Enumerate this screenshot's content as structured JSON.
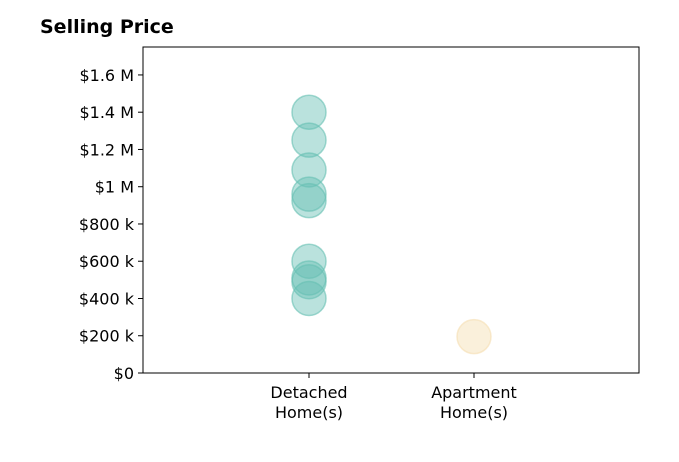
{
  "chart_data": {
    "type": "scatter",
    "title": "Selling Price",
    "xlabel": "",
    "ylabel": "",
    "categories": [
      "Detached\nHome(s)",
      "Apartment\nHome(s)"
    ],
    "ylim": [
      0,
      1750000
    ],
    "yticks": [
      {
        "value": 0,
        "label": "$0"
      },
      {
        "value": 200000,
        "label": "$200 k"
      },
      {
        "value": 400000,
        "label": "$400 k"
      },
      {
        "value": 600000,
        "label": "$600 k"
      },
      {
        "value": 800000,
        "label": "$800 k"
      },
      {
        "value": 1000000,
        "label": "$1 M"
      },
      {
        "value": 1200000,
        "label": "$1.2 M"
      },
      {
        "value": 1400000,
        "label": "$1.4 M"
      },
      {
        "value": 1600000,
        "label": "$1.6 M"
      }
    ],
    "grid": false,
    "series": [
      {
        "category": "Detached\nHome(s)",
        "color": "#66bfb3",
        "values": [
          1400000,
          1250000,
          1090000,
          960000,
          925000,
          600000,
          510000,
          490000,
          400000
        ]
      },
      {
        "category": "Apartment\nHome(s)",
        "color": "#f5deb0",
        "values": [
          195000
        ]
      }
    ]
  }
}
